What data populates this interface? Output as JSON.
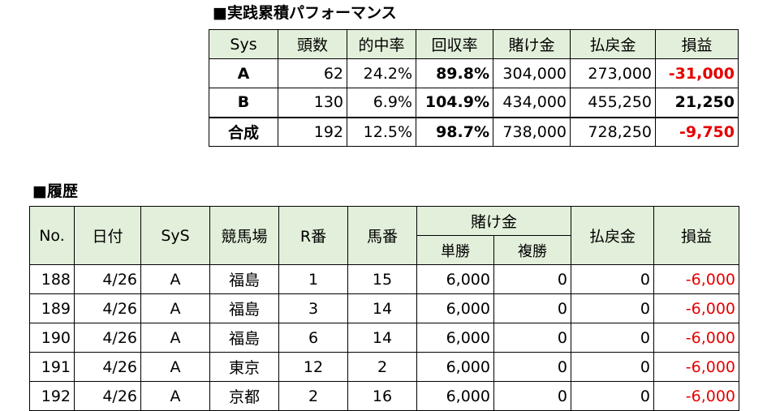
{
  "performance": {
    "title": "■実践累積パフォーマンス",
    "headers": [
      "Sys",
      "頭数",
      "的中率",
      "回収率",
      "賭け金",
      "払戻金",
      "損益"
    ],
    "rows": [
      {
        "sys": "A",
        "count": "62",
        "hit_rate": "24.2%",
        "recovery": "89.8%",
        "bet": "304,000",
        "payout": "273,000",
        "profit": "-31,000",
        "profit_negative": true
      },
      {
        "sys": "B",
        "count": "130",
        "hit_rate": "6.9%",
        "recovery": "104.9%",
        "bet": "434,000",
        "payout": "455,250",
        "profit": "21,250",
        "profit_negative": false
      },
      {
        "sys": "合成",
        "count": "192",
        "hit_rate": "12.5%",
        "recovery": "98.7%",
        "bet": "738,000",
        "payout": "728,250",
        "profit": "-9,750",
        "profit_negative": true
      }
    ]
  },
  "history": {
    "title": "■履歴",
    "headers": {
      "no": "No.",
      "date": "日付",
      "sys": "SyS",
      "venue": "競馬場",
      "race": "R番",
      "horse": "馬番",
      "bet_group": "賭け金",
      "win": "単勝",
      "place": "複勝",
      "payout": "払戻金",
      "profit": "損益"
    },
    "rows": [
      {
        "no": "188",
        "date": "4/26",
        "sys": "A",
        "venue": "福島",
        "race": "1",
        "horse": "15",
        "win": "6,000",
        "place": "0",
        "payout": "0",
        "profit": "-6,000"
      },
      {
        "no": "189",
        "date": "4/26",
        "sys": "A",
        "venue": "福島",
        "race": "3",
        "horse": "14",
        "win": "6,000",
        "place": "0",
        "payout": "0",
        "profit": "-6,000"
      },
      {
        "no": "190",
        "date": "4/26",
        "sys": "A",
        "venue": "福島",
        "race": "6",
        "horse": "14",
        "win": "6,000",
        "place": "0",
        "payout": "0",
        "profit": "-6,000"
      },
      {
        "no": "191",
        "date": "4/26",
        "sys": "A",
        "venue": "東京",
        "race": "12",
        "horse": "2",
        "win": "6,000",
        "place": "0",
        "payout": "0",
        "profit": "-6,000"
      },
      {
        "no": "192",
        "date": "4/26",
        "sys": "A",
        "venue": "京都",
        "race": "2",
        "horse": "16",
        "win": "6,000",
        "place": "0",
        "payout": "0",
        "profit": "-6,000"
      }
    ]
  },
  "colors": {
    "header_bg": "#e2efda",
    "negative": "#e60000"
  }
}
